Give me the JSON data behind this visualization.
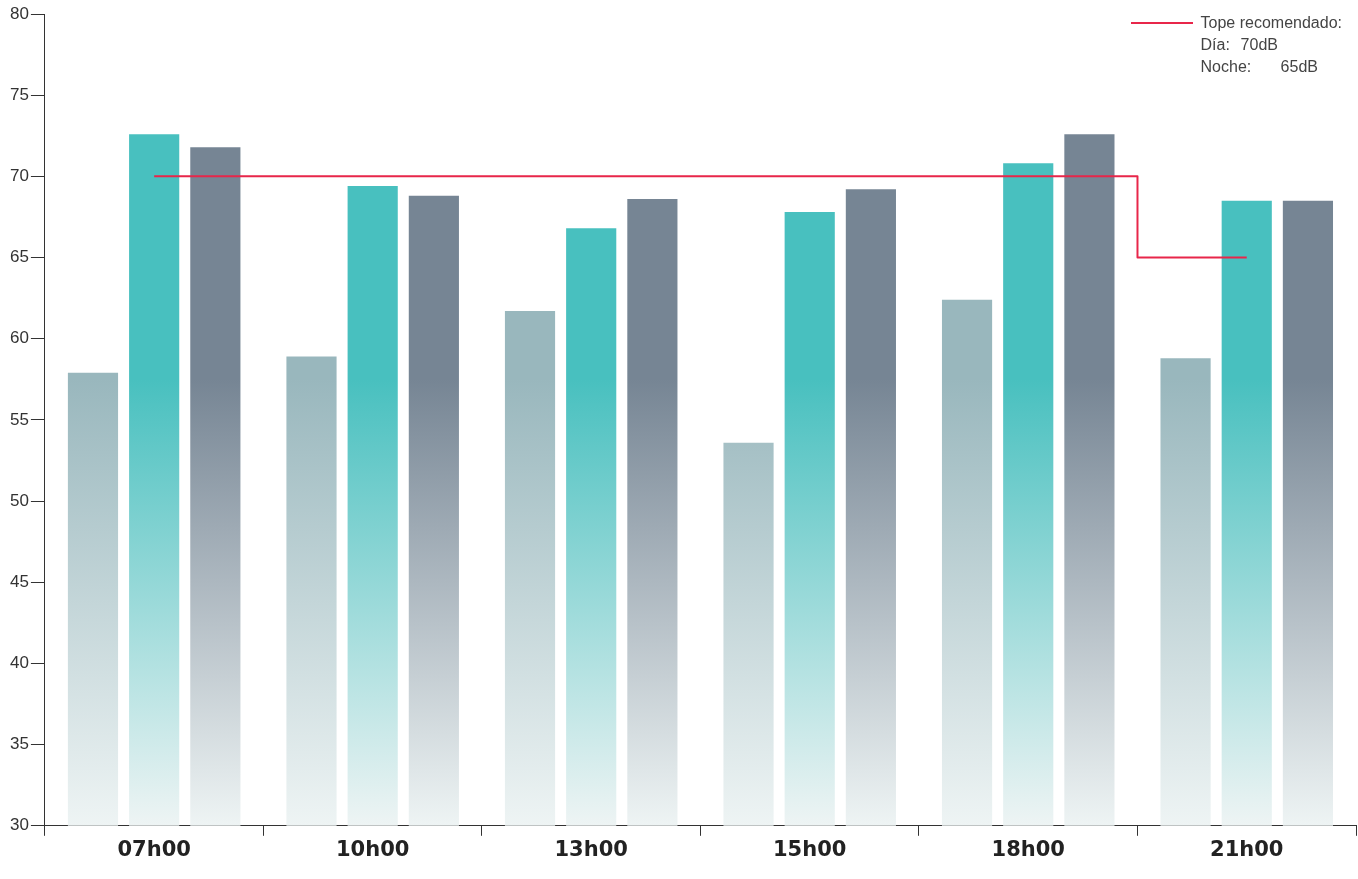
{
  "chart_data": {
    "type": "bar",
    "categories": [
      "07h00",
      "10h00",
      "13h00",
      "15h00",
      "18h00",
      "21h00"
    ],
    "series": [
      {
        "color": "#99b7bd",
        "values": [
          57.9,
          58.9,
          61.7,
          53.6,
          62.4,
          58.8
        ]
      },
      {
        "color": "#48c0bf",
        "values": [
          72.6,
          69.4,
          66.8,
          67.8,
          70.8,
          68.5
        ]
      },
      {
        "color": "#768594",
        "values": [
          71.8,
          68.8,
          68.6,
          69.2,
          72.6,
          68.5
        ]
      },
      {
        "type": "step",
        "name": "Tope recomendado:",
        "color": "#e8264a",
        "values": [
          70,
          70,
          70,
          70,
          70,
          65
        ]
      }
    ],
    "ylim": [
      30,
      80
    ],
    "yticks": [
      30,
      35,
      40,
      45,
      50,
      55,
      60,
      65,
      70,
      75,
      80
    ],
    "grid": false,
    "legend": "top right",
    "annotations": [
      "Día:\t70dB",
      "Noche:\t65dB"
    ]
  }
}
